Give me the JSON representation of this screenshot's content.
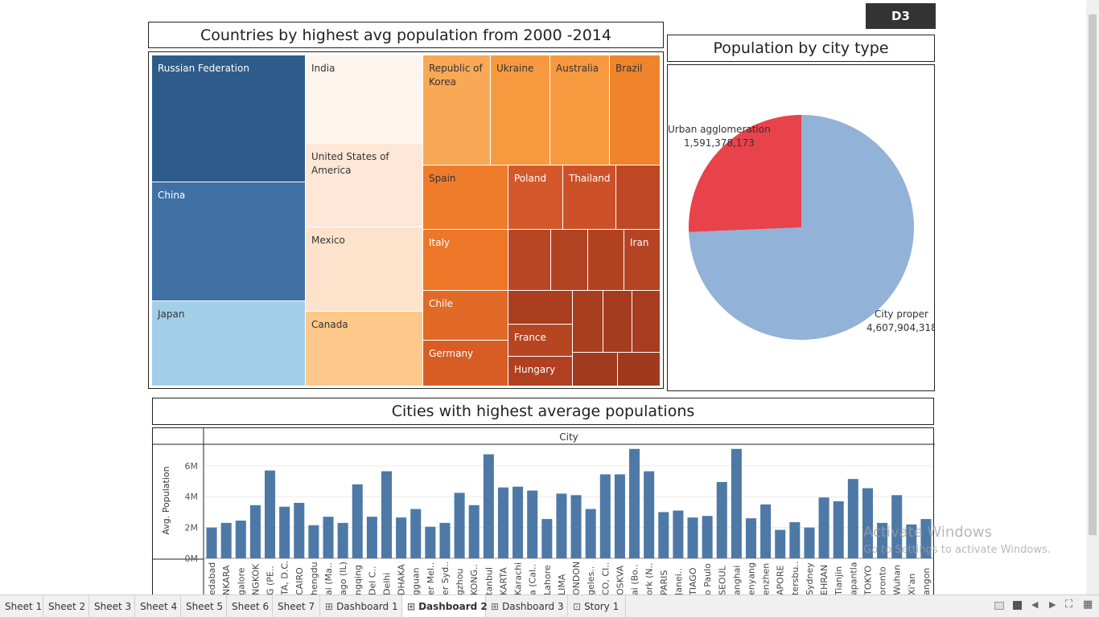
{
  "badge": "D3",
  "treemap": {
    "title": "Countries by highest avg population from 2000 -2014",
    "cells": [
      {
        "label": "Russian Federation",
        "color": "#2e5c8a",
        "text": "#ffffff"
      },
      {
        "label": "China",
        "color": "#3f71a4",
        "text": "#ffffff"
      },
      {
        "label": "Japan",
        "color": "#a3cee8",
        "text": "#333333"
      },
      {
        "label": "India",
        "color": "#fff4ee",
        "text": "#333333"
      },
      {
        "label": "United States of America",
        "color": "#fee7d6",
        "text": "#333333"
      },
      {
        "label": "Mexico",
        "color": "#fde3cc",
        "text": "#333333"
      },
      {
        "label": "Canada",
        "color": "#fdc88a",
        "text": "#333333"
      },
      {
        "label": "Republic of Korea",
        "color": "#f9a955",
        "text": "#333333"
      },
      {
        "label": "Ukraine",
        "color": "#f79a3f",
        "text": "#333333"
      },
      {
        "label": "Australia",
        "color": "#f79a3f",
        "text": "#333333"
      },
      {
        "label": "Brazil",
        "color": "#f0842d",
        "text": "#333333"
      },
      {
        "label": "Spain",
        "color": "#ef7c2a",
        "text": "#333333"
      },
      {
        "label": "Poland",
        "color": "#d3592a",
        "text": "#ffffff"
      },
      {
        "label": "Thailand",
        "color": "#cc5128",
        "text": "#ffffff"
      },
      {
        "label": "Italy",
        "color": "#ee7629",
        "text": "#ffffff"
      },
      {
        "label": "Iran",
        "color": "#b54424",
        "text": "#ffffff"
      },
      {
        "label": "Chile",
        "color": "#e06a26",
        "text": "#ffffff"
      },
      {
        "label": "Germany",
        "color": "#d85d25",
        "text": "#ffffff"
      },
      {
        "label": "France",
        "color": "#b84522",
        "text": "#ffffff"
      },
      {
        "label": "Hungary",
        "color": "#b04020",
        "text": "#ffffff"
      }
    ]
  },
  "pie": {
    "title": "Population by city type",
    "slices": [
      {
        "name": "City proper",
        "label": "City proper",
        "value": "4,607,904,318",
        "amount": 4607904318,
        "color": "#92b2d8"
      },
      {
        "name": "Urban agglomeration",
        "label": "Urban agglomeration",
        "value": "1,591,378,173",
        "amount": 1591378173,
        "color": "#e8434b"
      }
    ]
  },
  "bars": {
    "title": "Cities with highest average populations",
    "column_header": "City",
    "ylabel": "Avg. Population",
    "yticks": [
      "0M",
      "2M",
      "4M",
      "6M"
    ],
    "ylim": [
      0,
      7.4
    ],
    "bar_color": "#4e79a7"
  },
  "chart_data": {
    "type": "bar",
    "xlabel": "City",
    "ylabel": "Avg. Population",
    "ylim": [
      0,
      7.4
    ],
    "categories": [
      "edabad",
      "NKARA",
      "galore",
      "NGKOK",
      "G (PE..",
      "TA, D.C.",
      "CAIRO",
      "hengdu",
      "ai (Ma..",
      "ago (IL)",
      "ngqing",
      "Del C..",
      "Delhi",
      "DHAKA",
      "gguan",
      "er Mel..",
      "er Syd..",
      "gzhou",
      "KONG..",
      "tanbul",
      "KARTA",
      "Karachi",
      "a (Cal..",
      "Lahore",
      "LIMA",
      "ONDON",
      "geles..",
      "CO, CI..",
      "OSKVA",
      "ai (Bo..",
      "ork (N..",
      "PARIS",
      "Janei..",
      "TIAGO",
      "o Paulo",
      "SEOUL",
      "anghai",
      "enyang",
      "enzhen",
      "APORE",
      "tersbu..",
      "Sydney",
      "EHRAN",
      "Tianjin",
      "apantla",
      "TOKYO",
      "oronto",
      "Wuhan",
      "Xi'an",
      "angon"
    ],
    "values": [
      2.0,
      2.3,
      2.45,
      3.45,
      5.7,
      3.35,
      3.6,
      2.15,
      2.7,
      2.3,
      4.8,
      2.7,
      5.65,
      2.65,
      3.2,
      2.05,
      2.3,
      4.25,
      3.45,
      6.75,
      4.6,
      4.65,
      4.4,
      2.55,
      4.2,
      4.1,
      3.2,
      5.45,
      5.45,
      7.1,
      5.65,
      3.0,
      3.1,
      2.65,
      2.75,
      4.95,
      7.1,
      2.6,
      3.5,
      1.85,
      2.35,
      2.0,
      3.95,
      3.7,
      5.15,
      4.55,
      2.3,
      4.1,
      2.2,
      2.55
    ]
  },
  "tabs": [
    {
      "label": "Sheet 1",
      "icon": ""
    },
    {
      "label": "Sheet 2",
      "icon": ""
    },
    {
      "label": "Sheet 3",
      "icon": ""
    },
    {
      "label": "Sheet 4",
      "icon": ""
    },
    {
      "label": "Sheet 5",
      "icon": ""
    },
    {
      "label": "Sheet 6",
      "icon": ""
    },
    {
      "label": "Sheet 7",
      "icon": ""
    },
    {
      "label": "Dashboard 1",
      "icon": "dashboard-icon"
    },
    {
      "label": "Dashboard 2",
      "icon": "dashboard-icon",
      "active": true
    },
    {
      "label": "Dashboard 3",
      "icon": "dashboard-icon"
    },
    {
      "label": "Story 1",
      "icon": "story-icon"
    }
  ],
  "watermark": {
    "line1": "Activate Windows",
    "line2": "Go to Settings to activate Windows."
  }
}
